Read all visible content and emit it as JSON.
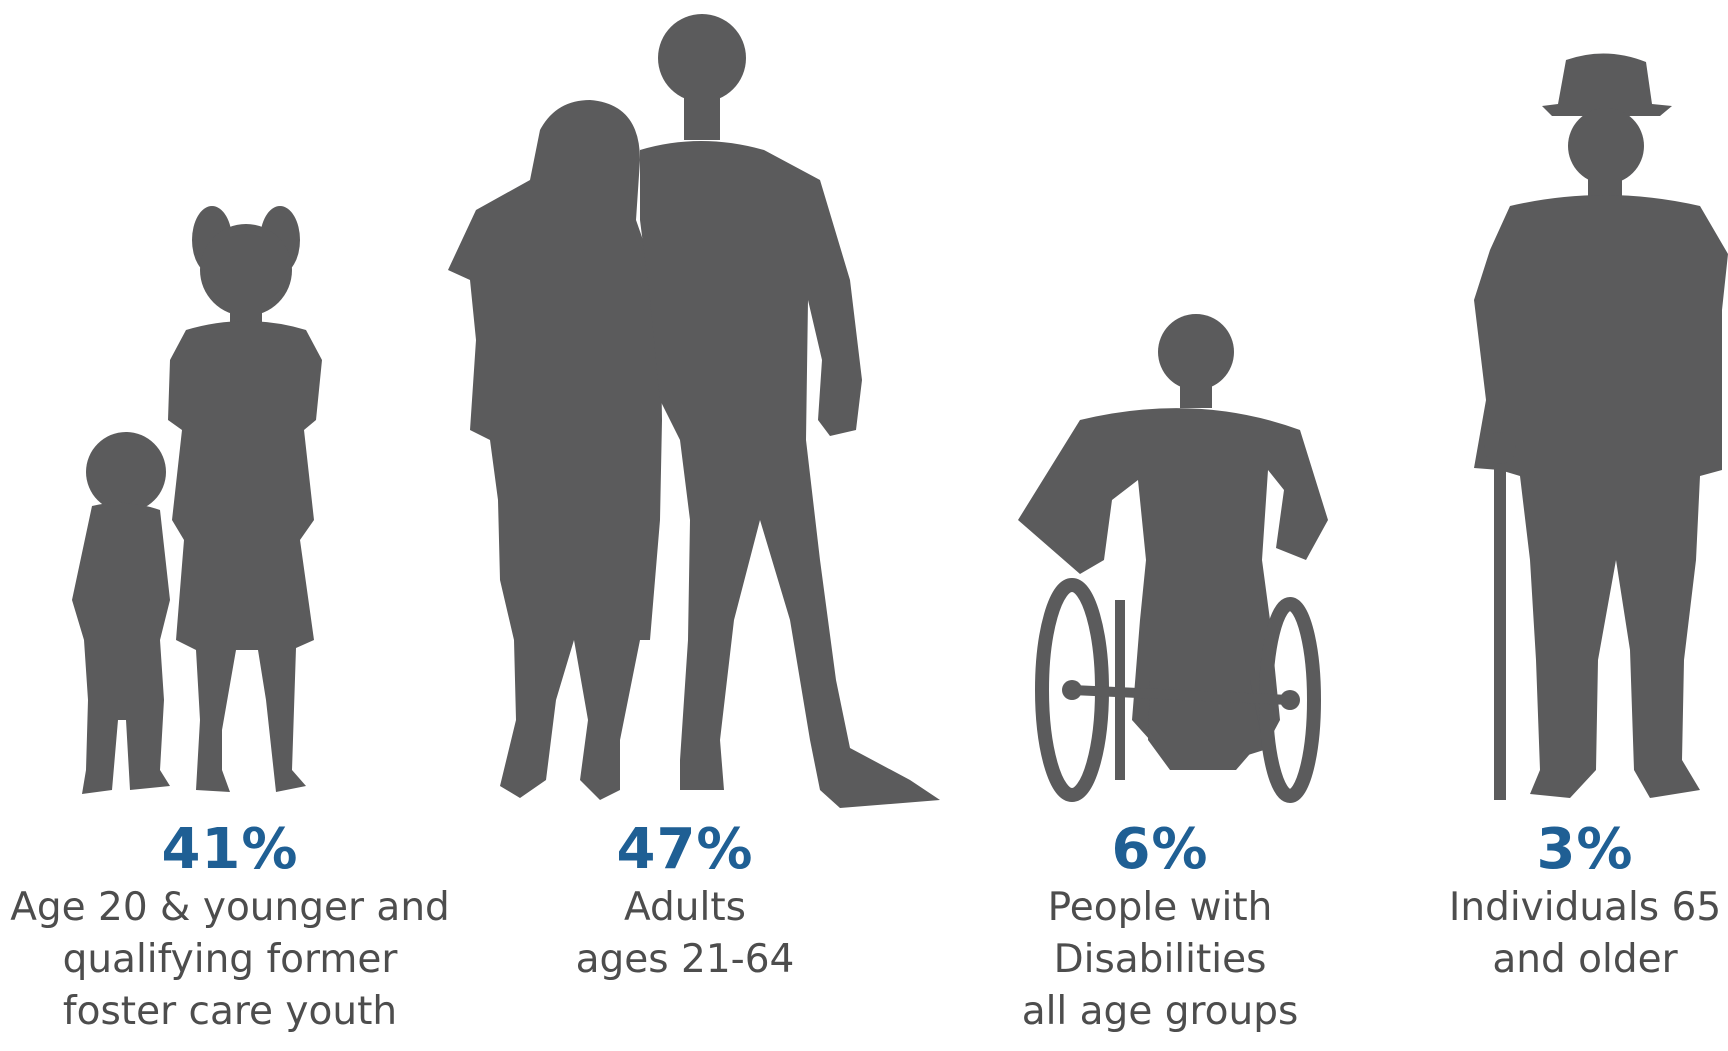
{
  "groups": [
    {
      "id": "youth",
      "percent": "41%",
      "label_lines": [
        "Age 20 & younger and",
        "qualifying former",
        "foster care youth"
      ],
      "icon": "child-silhouettes-icon"
    },
    {
      "id": "adults",
      "percent": "47%",
      "label_lines": [
        "Adults",
        "ages 21-64"
      ],
      "icon": "adult-couple-silhouettes-icon"
    },
    {
      "id": "disabilities",
      "percent": "6%",
      "label_lines": [
        "People with",
        "Disabilities",
        "all age groups"
      ],
      "icon": "wheelchair-user-silhouette-icon"
    },
    {
      "id": "seniors",
      "percent": "3%",
      "label_lines": [
        "Individuals 65",
        "and older"
      ],
      "icon": "elderly-man-with-cane-silhouette-icon"
    }
  ],
  "colors": {
    "silhouette": "#5b5b5c",
    "percent": "#1f5f94",
    "label": "#4d4d4d",
    "background": "#ffffff"
  }
}
